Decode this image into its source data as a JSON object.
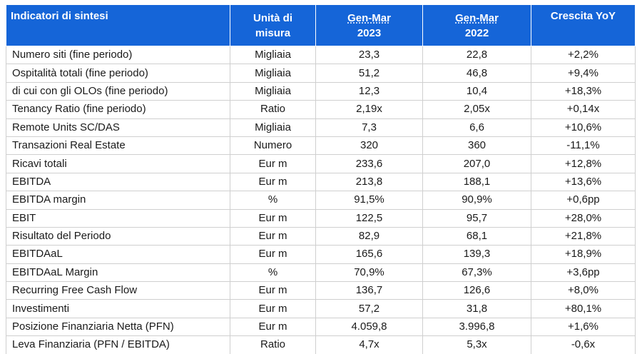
{
  "header": {
    "col0": "Indicatori di sintesi",
    "col1_line1": "Unità di",
    "col1_line2": "misura",
    "col2_line1": "Gen-Mar",
    "col2_line2": "2023",
    "col3_line1": "Gen-Mar",
    "col3_line2": "2022",
    "col4": "Crescita YoY"
  },
  "rows": [
    {
      "label": "Numero siti (fine periodo)",
      "unit": "Migliaia",
      "y2023": "23,3",
      "y2022": "22,8",
      "growth": "+2,2%"
    },
    {
      "label": "Ospitalità totali (fine periodo)",
      "unit": "Migliaia",
      "y2023": "51,2",
      "y2022": "46,8",
      "growth": "+9,4%"
    },
    {
      "label": "di cui con gli OLOs (fine periodo)",
      "unit": "Migliaia",
      "y2023": "12,3",
      "y2022": "10,4",
      "growth": "+18,3%"
    },
    {
      "label": "Tenancy Ratio (fine periodo)",
      "unit": "Ratio",
      "y2023": "2,19x",
      "y2022": "2,05x",
      "growth": "+0,14x"
    },
    {
      "label": "Remote Units SC/DAS",
      "unit": "Migliaia",
      "y2023": "7,3",
      "y2022": "6,6",
      "growth": "+10,6%"
    },
    {
      "label": "Transazioni Real Estate",
      "unit": "Numero",
      "y2023": "320",
      "y2022": "360",
      "growth": "-11,1%"
    },
    {
      "label": "Ricavi totali",
      "unit": "Eur m",
      "y2023": "233,6",
      "y2022": "207,0",
      "growth": "+12,8%"
    },
    {
      "label": "EBITDA",
      "unit": "Eur m",
      "y2023": "213,8",
      "y2022": "188,1",
      "growth": "+13,6%"
    },
    {
      "label": "EBITDA margin",
      "unit": "%",
      "y2023": "91,5%",
      "y2022": "90,9%",
      "growth": "+0,6pp"
    },
    {
      "label": "EBIT",
      "unit": "Eur m",
      "y2023": "122,5",
      "y2022": "95,7",
      "growth": "+28,0%"
    },
    {
      "label": "Risultato del Periodo",
      "unit": "Eur m",
      "y2023": "82,9",
      "y2022": "68,1",
      "growth": "+21,8%"
    },
    {
      "label": "EBITDAaL",
      "unit": "Eur m",
      "y2023": "165,6",
      "y2022": "139,3",
      "growth": "+18,9%"
    },
    {
      "label": "EBITDAaL Margin",
      "unit": "%",
      "y2023": "70,9%",
      "y2022": "67,3%",
      "growth": "+3,6pp"
    },
    {
      "label": "Recurring Free Cash Flow",
      "unit": "Eur m",
      "y2023": "136,7",
      "y2022": "126,6",
      "growth": "+8,0%"
    },
    {
      "label": "Investimenti",
      "unit": "Eur m",
      "y2023": "57,2",
      "y2022": "31,8",
      "growth": "+80,1%"
    },
    {
      "label": "Posizione Finanziaria Netta (PFN)",
      "unit": "Eur m",
      "y2023": "4.059,8",
      "y2022": "3.996,8",
      "growth": "+1,6%"
    },
    {
      "label": "Leva Finanziaria (PFN / EBITDA)",
      "unit": "Ratio",
      "y2023": "4,7x",
      "y2022": "5,3x",
      "growth": "-0,6x"
    }
  ],
  "colors": {
    "header_bg": "#1565d8",
    "header_text": "#ffffff",
    "grid": "#cfcfcf"
  }
}
